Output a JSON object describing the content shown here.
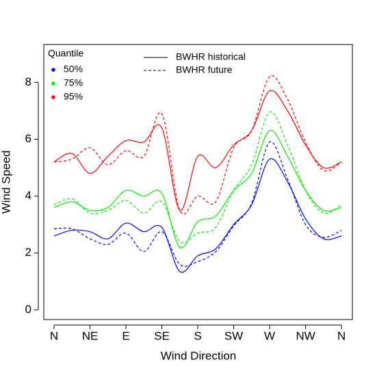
{
  "chart_data": {
    "type": "line",
    "x_label": "Wind Direction",
    "y_label": "Wind Speed",
    "categories": [
      "N",
      null,
      "NE",
      null,
      "E",
      null,
      "SE",
      null,
      "S",
      null,
      "SW",
      null,
      "W",
      null,
      "NW",
      null,
      "N"
    ],
    "ylim": [
      -0.34,
      9.33
    ],
    "yticks": [
      0,
      2,
      4,
      6,
      8
    ],
    "smooth": true,
    "color_legend": {
      "title": "Quantile",
      "entries": [
        {
          "label": "50%",
          "color": "#0000ff"
        },
        {
          "label": "75%",
          "color": "#00ee00"
        },
        {
          "label": "95%",
          "color": "#ff0000"
        }
      ]
    },
    "linetype_legend": [
      {
        "label": "BWHR historical",
        "dashed": false
      },
      {
        "label": "BWHR future",
        "dashed": true
      }
    ],
    "series": [
      {
        "color": "#0000ff",
        "dashed": false,
        "values": [
          2.6,
          2.8,
          2.75,
          2.5,
          3.05,
          2.75,
          2.9,
          1.35,
          1.9,
          2.15,
          3.0,
          3.7,
          5.3,
          4.5,
          3.2,
          2.5,
          2.6
        ]
      },
      {
        "color": "#0000ff",
        "dashed": true,
        "values": [
          2.85,
          2.85,
          2.5,
          2.3,
          2.7,
          2.05,
          2.75,
          1.6,
          1.7,
          2.05,
          2.95,
          3.75,
          5.9,
          4.6,
          3.0,
          2.55,
          2.8
        ]
      },
      {
        "color": "#00ee00",
        "dashed": false,
        "values": [
          3.6,
          3.8,
          3.5,
          3.6,
          4.2,
          4.0,
          4.1,
          2.2,
          3.1,
          3.3,
          4.2,
          4.8,
          6.3,
          5.4,
          4.2,
          3.5,
          3.6
        ]
      },
      {
        "color": "#00ee00",
        "dashed": true,
        "values": [
          3.7,
          3.9,
          3.4,
          3.5,
          3.85,
          3.4,
          3.8,
          2.4,
          2.7,
          2.9,
          4.2,
          5.1,
          6.95,
          5.8,
          4.2,
          3.4,
          3.7
        ]
      },
      {
        "color": "#ff0000",
        "dashed": false,
        "values": [
          5.2,
          5.5,
          4.8,
          5.4,
          5.95,
          5.9,
          6.4,
          3.5,
          5.4,
          5.0,
          5.8,
          6.3,
          7.7,
          7.0,
          5.8,
          5.0,
          5.2
        ]
      },
      {
        "color": "#ff0000",
        "dashed": true,
        "values": [
          5.2,
          5.3,
          5.7,
          5.1,
          5.6,
          5.4,
          6.9,
          3.5,
          4.0,
          3.8,
          5.7,
          6.3,
          8.2,
          7.4,
          5.9,
          4.9,
          5.2
        ]
      }
    ]
  }
}
